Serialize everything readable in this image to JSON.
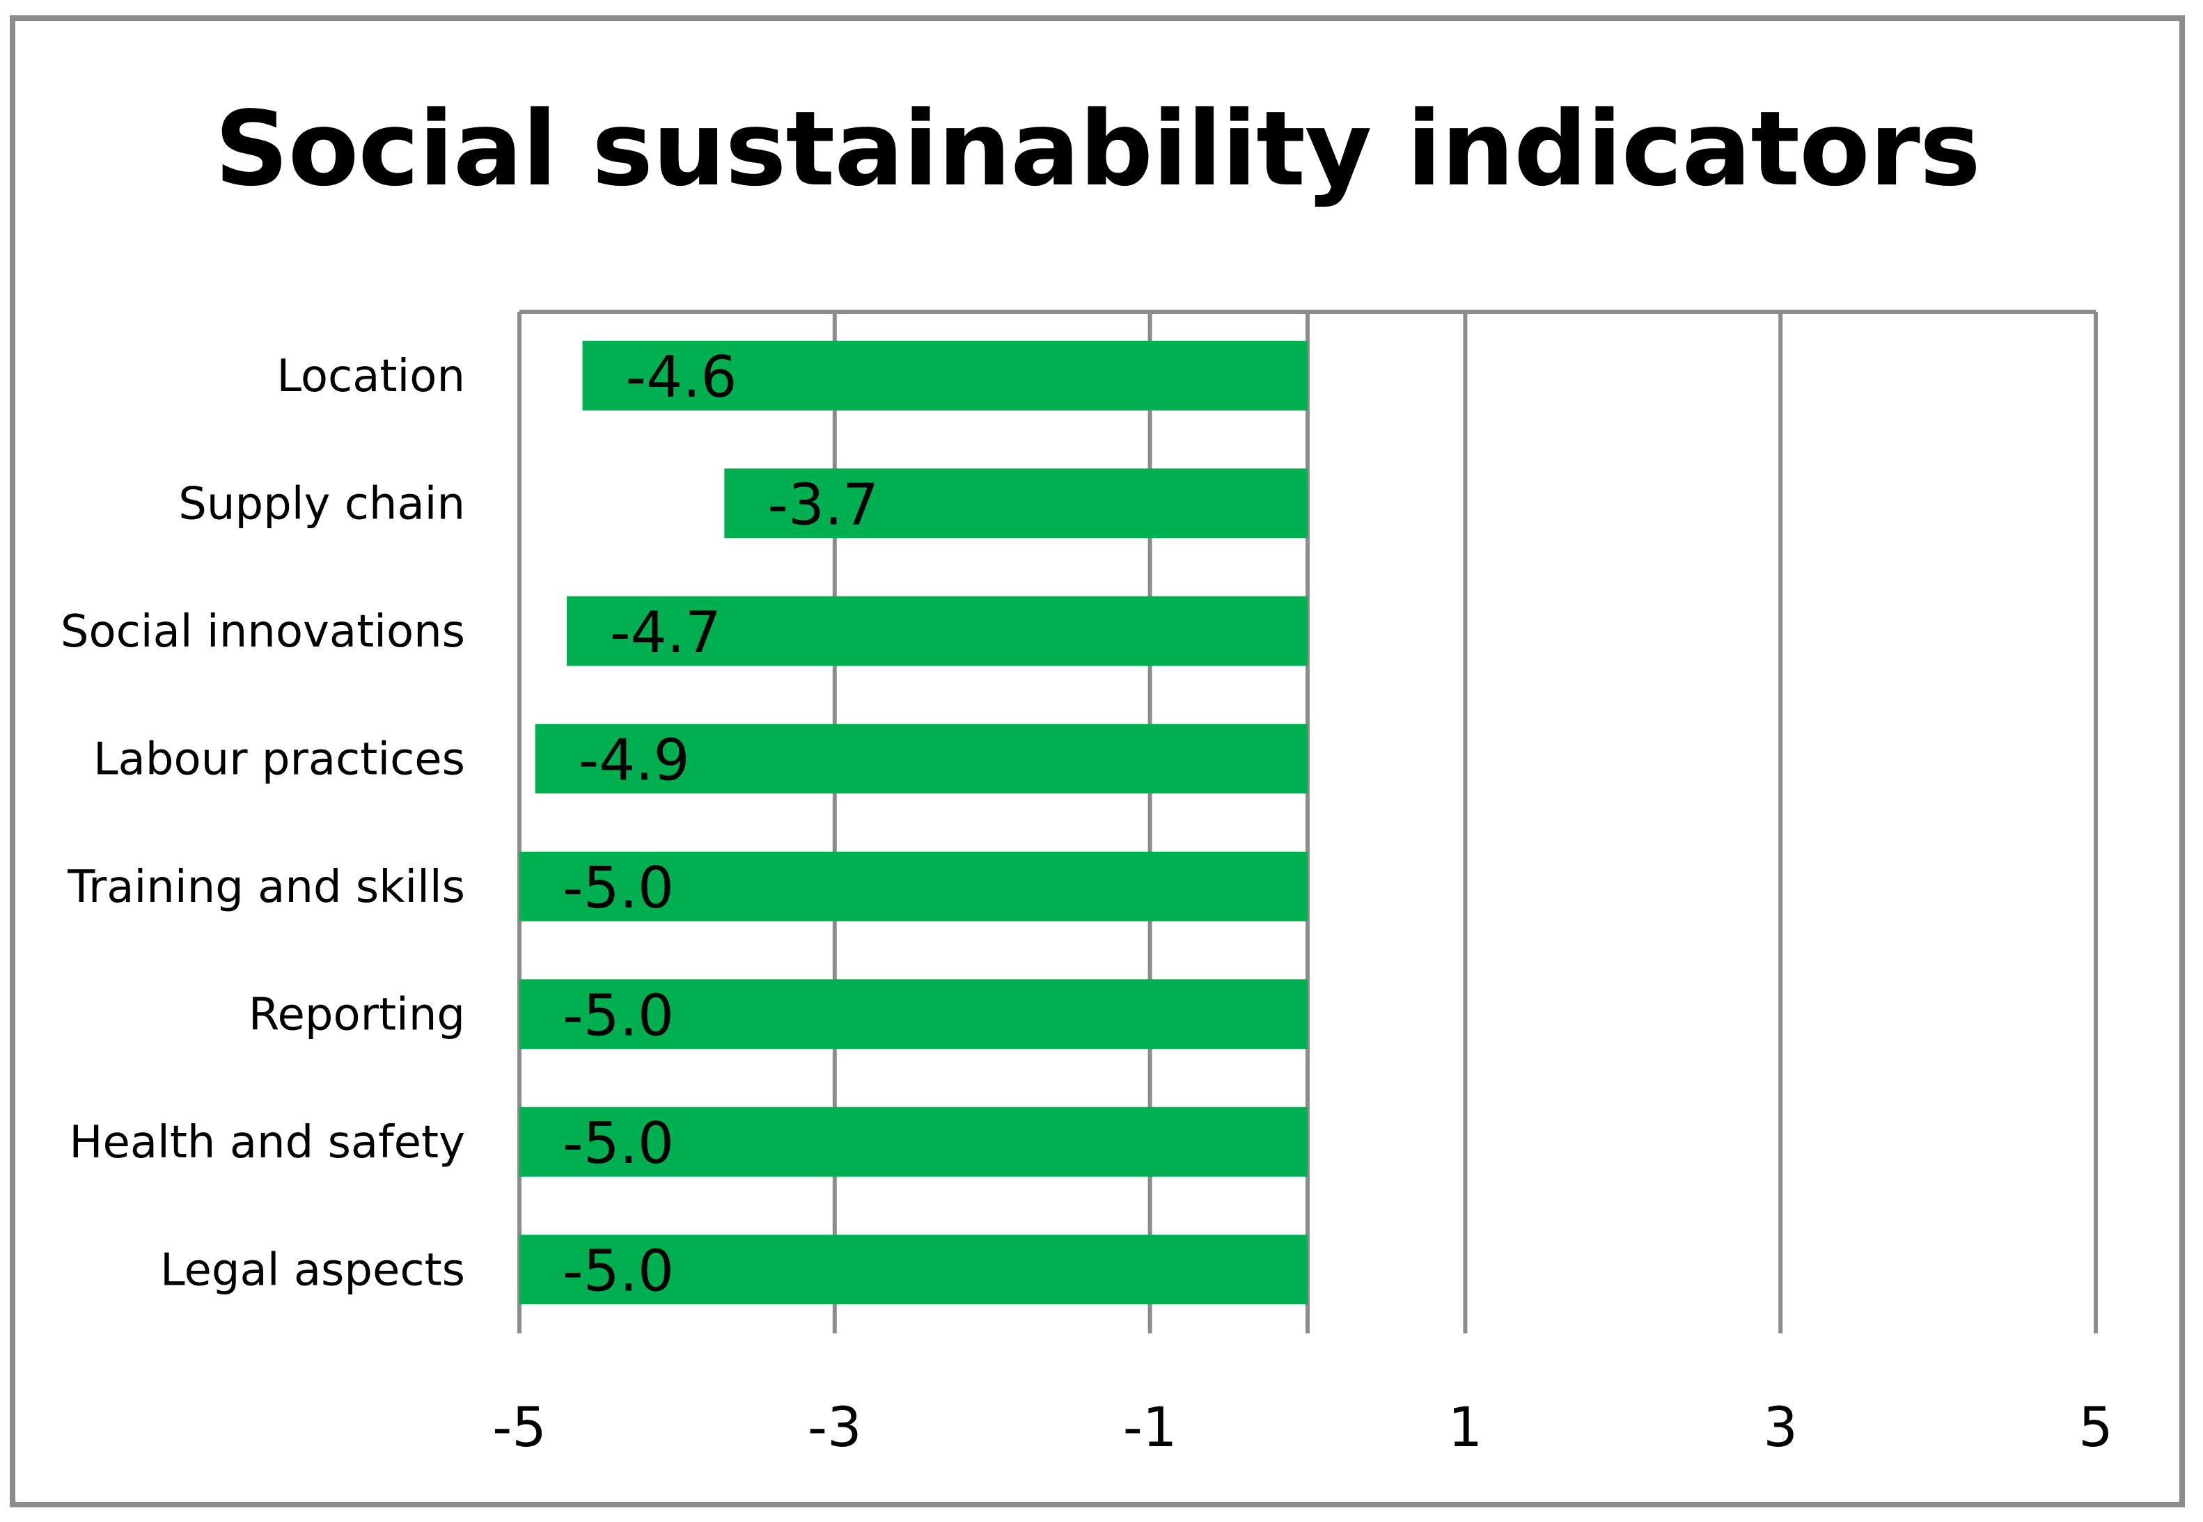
{
  "chart_data": {
    "type": "bar",
    "orientation": "horizontal",
    "title": "Social sustainability indicators",
    "xlabel": "",
    "ylabel": "",
    "categories": [
      "Location",
      "Supply chain",
      "Social innovations",
      "Labour practices",
      "Training and skills",
      "Reporting",
      "Health and safety",
      "Legal aspects"
    ],
    "values": [
      -4.6,
      -3.7,
      -4.7,
      -4.9,
      -5.0,
      -5.0,
      -5.0,
      -5.0
    ],
    "data_labels": [
      "-4.6",
      "-3.7",
      "-4.7",
      "-4.9",
      "-5.0",
      "-5.0",
      "-5.0",
      "-5.0"
    ],
    "xlim": [
      -5,
      5
    ],
    "xticks": [
      -5,
      -3,
      -1,
      1,
      3,
      5
    ],
    "xtick_labels": [
      "-5",
      "-3",
      "-1",
      "1",
      "3",
      "5"
    ],
    "grid": true,
    "legend": "none",
    "bar_color": "#00b050",
    "gridline_color": "#8c8c8c",
    "frame_color": "#8c8c8c"
  }
}
